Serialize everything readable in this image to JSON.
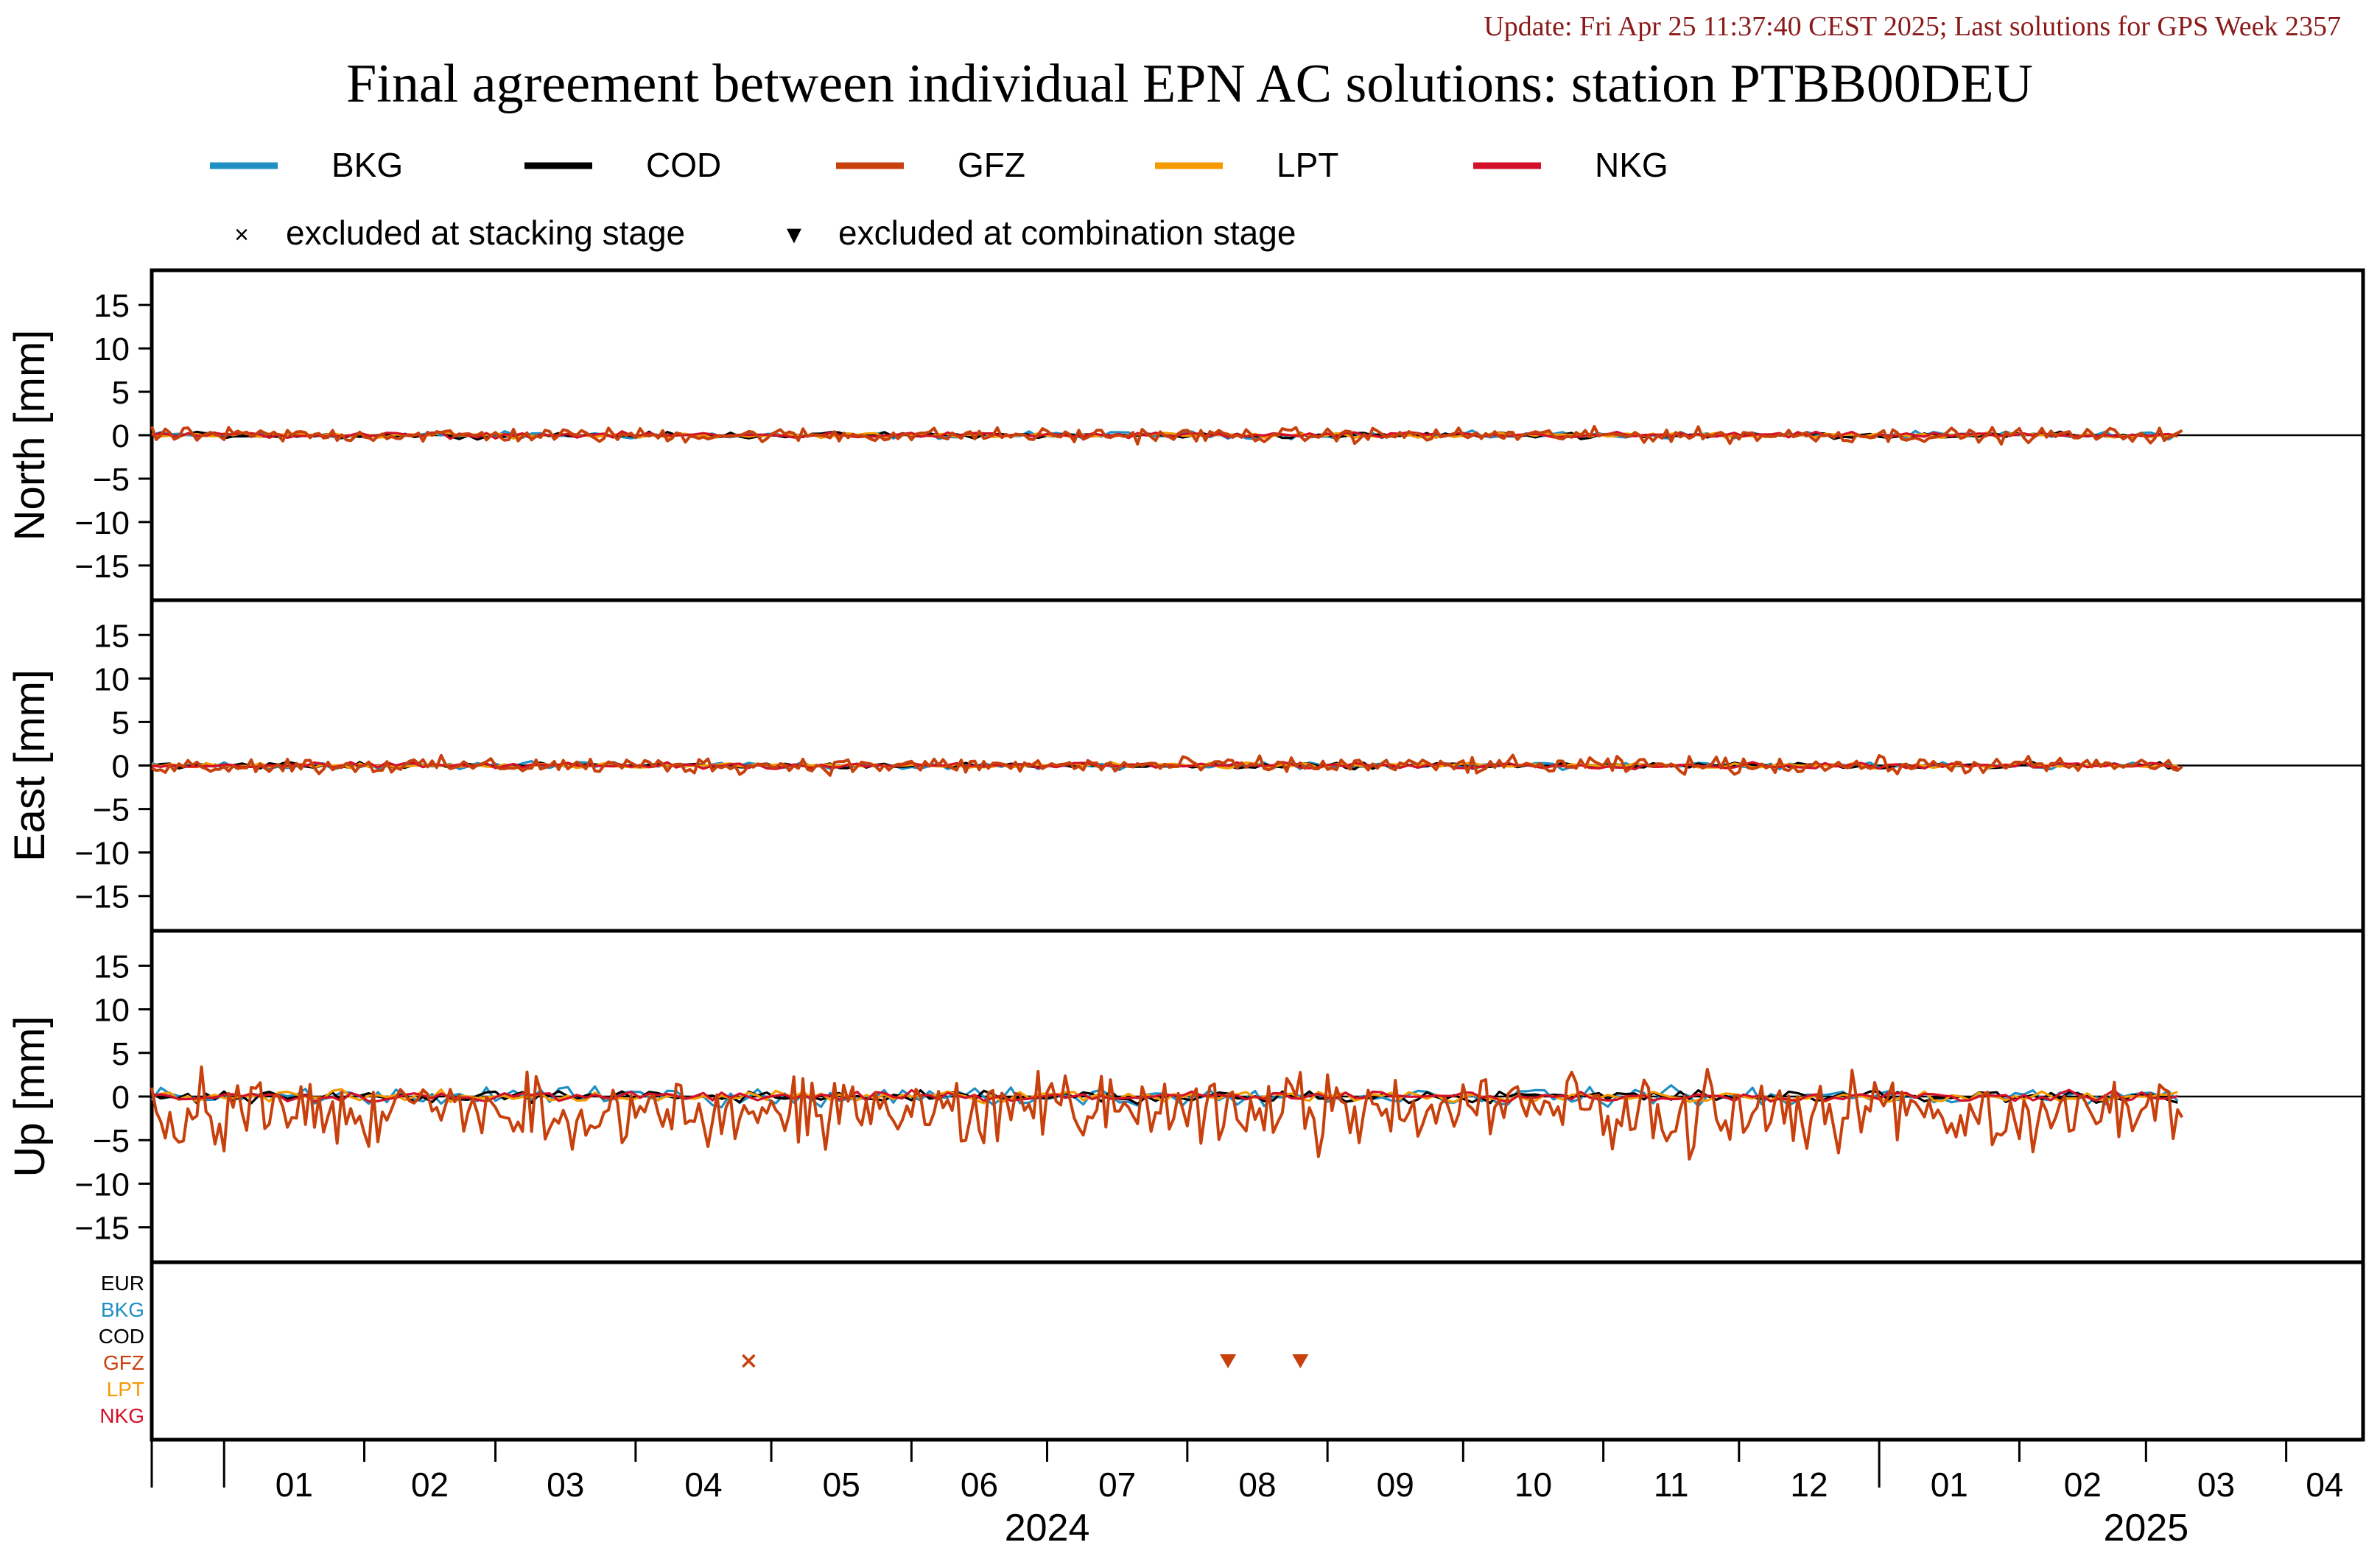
{
  "header": {
    "update_text": "Update: Fri Apr 25 11:37:40 CEST 2025; Last solutions for GPS Week 2357",
    "title": "Final agreement between individual EPN AC solutions: station PTBB00DEU"
  },
  "legend": {
    "lines": [
      {
        "label": "BKG",
        "color": "#1f8fc4"
      },
      {
        "label": "COD",
        "color": "#000000"
      },
      {
        "label": "GFZ",
        "color": "#c8400c"
      },
      {
        "label": "LPT",
        "color": "#f59a00"
      },
      {
        "label": "NKG",
        "color": "#d4102a"
      }
    ],
    "markers": [
      {
        "symbol": "×",
        "label": "excluded at stacking stage"
      },
      {
        "symbol": "▼",
        "label": "excluded at combination stage"
      }
    ]
  },
  "chart_data": {
    "type": "line",
    "x_range": [
      "2023-12-16",
      "2025-04-18"
    ],
    "x_month_ticks": [
      "2024-01",
      "2024-02",
      "2024-03",
      "2024-04",
      "2024-05",
      "2024-06",
      "2024-07",
      "2024-08",
      "2024-09",
      "2024-10",
      "2024-11",
      "2024-12",
      "2025-01",
      "2025-02",
      "2025-03",
      "2025-04"
    ],
    "x_month_labels": [
      "01",
      "02",
      "03",
      "04",
      "05",
      "06",
      "07",
      "08",
      "09",
      "10",
      "11",
      "12",
      "01",
      "02",
      "03",
      "04"
    ],
    "x_year_labels": [
      {
        "label": "2024",
        "date": "2024-07-01"
      },
      {
        "label": "2025",
        "date": "2025-03-01"
      }
    ],
    "series_window": {
      "start": "2023-12-16",
      "end": "2025-03-09"
    },
    "panels": [
      {
        "ylabel": "North [mm]",
        "ylim": [
          -19,
          19
        ],
        "yticks": [
          -15,
          -10,
          -5,
          0,
          5,
          10,
          15
        ],
        "series": [
          {
            "name": "BKG",
            "amplitude": 0.35
          },
          {
            "name": "COD",
            "amplitude": 0.3
          },
          {
            "name": "GFZ",
            "amplitude": 0.7
          },
          {
            "name": "LPT",
            "amplitude": 0.25
          },
          {
            "name": "NKG",
            "amplitude": 0.3
          }
        ]
      },
      {
        "ylabel": "East [mm]",
        "ylim": [
          -19,
          19
        ],
        "yticks": [
          -15,
          -10,
          -5,
          0,
          5,
          10,
          15
        ],
        "series": [
          {
            "name": "BKG",
            "amplitude": 0.35
          },
          {
            "name": "COD",
            "amplitude": 0.3
          },
          {
            "name": "GFZ",
            "amplitude": 0.8
          },
          {
            "name": "LPT",
            "amplitude": 0.25
          },
          {
            "name": "NKG",
            "amplitude": 0.3
          }
        ]
      },
      {
        "ylabel": "Up [mm]",
        "ylim": [
          -19,
          19
        ],
        "yticks": [
          -15,
          -10,
          -5,
          0,
          5,
          10,
          15
        ],
        "series": [
          {
            "name": "BKG",
            "amplitude": 0.9
          },
          {
            "name": "COD",
            "amplitude": 0.6
          },
          {
            "name": "GFZ",
            "amplitude": 3.2
          },
          {
            "name": "LPT",
            "amplitude": 0.6
          },
          {
            "name": "NKG",
            "amplitude": 0.5
          }
        ]
      }
    ],
    "exclusion_panel": {
      "rows": [
        {
          "label": "EUR",
          "color": "#000000"
        },
        {
          "label": "BKG",
          "color": "#1f8fc4"
        },
        {
          "label": "COD",
          "color": "#000000"
        },
        {
          "label": "GFZ",
          "color": "#c8400c"
        },
        {
          "label": "LPT",
          "color": "#f59a00"
        },
        {
          "label": "NKG",
          "color": "#d4102a"
        }
      ],
      "markers": [
        {
          "type": "stacking",
          "row": "GFZ",
          "date": "2024-04-26"
        },
        {
          "type": "combination",
          "row": "GFZ",
          "date": "2024-08-10"
        },
        {
          "type": "combination",
          "row": "GFZ",
          "date": "2024-08-26"
        }
      ]
    }
  }
}
